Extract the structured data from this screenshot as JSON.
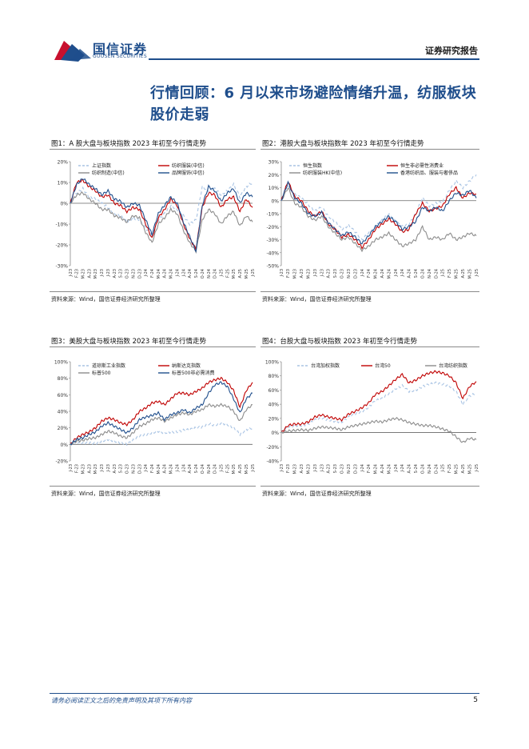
{
  "header": {
    "brand_cn": "国信证券",
    "brand_en": "GUOSEN SECURITIES",
    "report_type": "证券研究报告"
  },
  "title": "行情回顾：6 月以来市场避险情绪升温，纺服板块股价走弱",
  "footer": {
    "disclaimer": "请务必阅读正文之后的免责声明及其项下所有内容",
    "page": "5"
  },
  "colors": {
    "brand_blue": "#1f4e8c",
    "red": "#c00000",
    "gray": "#8c8c8c",
    "light_blue": "#a9c4e4",
    "dark_blue": "#1f4e8c"
  },
  "chart_data": [
    {
      "type": "line",
      "title": "图1：A 股大盘与板块指数 2023 年初至今行情走势",
      "source": "资料来源：Wind，国信证券经济研究所整理",
      "yticks": [
        "20%",
        "10%",
        "0%",
        "-10%",
        "-20%",
        "-30%"
      ],
      "ylim": [
        -30,
        20
      ],
      "xticks": [
        "J-23",
        "F-23",
        "M-23",
        "A-23",
        "M-23",
        "J-23",
        "J-23",
        "A-23",
        "S-23",
        "O-23",
        "N-23",
        "D-23",
        "J-24",
        "F-24",
        "M-24",
        "A-24",
        "M-24",
        "J-24",
        "J-24",
        "A-24",
        "S-24",
        "O-24",
        "N-24",
        "D-24",
        "J-25",
        "F-25",
        "M-25",
        "A-25",
        "M-25",
        "J-25"
      ],
      "series": [
        {
          "name": "上证指数",
          "color": "#a9c4e4",
          "dash": "4,3",
          "values": [
            0,
            5,
            7,
            3,
            2,
            0,
            -2,
            -5,
            -6,
            -9,
            -7,
            -8,
            -12,
            -15,
            -8,
            -5,
            -1,
            -3,
            -6,
            -10,
            -8,
            8,
            6,
            7,
            4,
            6,
            9,
            3,
            8,
            10
          ]
        },
        {
          "name": "纺织服装(中信)",
          "color": "#c00000",
          "values": [
            0,
            10,
            11,
            8,
            6,
            3,
            4,
            0,
            -1,
            -4,
            -2,
            -3,
            -10,
            -17,
            -7,
            -3,
            2,
            -1,
            -10,
            -17,
            -22,
            -2,
            5,
            4,
            -2,
            2,
            3,
            -4,
            2,
            -2
          ]
        },
        {
          "name": "纺织制造(中信)",
          "color": "#8c8c8c",
          "values": [
            0,
            4,
            5,
            2,
            0,
            -3,
            -3,
            -6,
            -7,
            -9,
            -6,
            -7,
            -14,
            -19,
            -10,
            -7,
            -3,
            -5,
            -13,
            -19,
            -23,
            -8,
            -3,
            -5,
            -10,
            -6,
            -4,
            -11,
            -6,
            -9
          ]
        },
        {
          "name": "品牌服饰(中信)",
          "color": "#1f4e8c",
          "values": [
            0,
            9,
            12,
            9,
            7,
            4,
            6,
            2,
            1,
            -2,
            0,
            -1,
            -8,
            -15,
            -5,
            -1,
            3,
            0,
            -9,
            -16,
            -23,
            -1,
            8,
            6,
            1,
            5,
            7,
            0,
            5,
            3
          ]
        }
      ]
    },
    {
      "type": "line",
      "title": "图2：港股大盘与板块指数年 2023 年初至今行情走势",
      "source": "资料来源：Wind，国信证券经济研究所整理",
      "yticks": [
        "30%",
        "20%",
        "10%",
        "0%",
        "-10%",
        "-20%",
        "-30%",
        "-40%",
        "-50%"
      ],
      "ylim": [
        -50,
        30
      ],
      "xticks": [
        "J-23",
        "F-23",
        "M-23",
        "A-23",
        "M-23",
        "J-23",
        "J-23",
        "A-23",
        "S-23",
        "O-23",
        "N-23",
        "D-23",
        "J-24",
        "F-24",
        "M-24",
        "A-24",
        "M-24",
        "J-24",
        "J-24",
        "A-24",
        "S-24",
        "O-24",
        "N-24",
        "D-24",
        "J-25",
        "F-25",
        "M-25",
        "A-25",
        "M-25",
        "J-25"
      ],
      "series": [
        {
          "name": "恒生指数",
          "color": "#a9c4e4",
          "dash": "4,3",
          "values": [
            0,
            12,
            5,
            2,
            -3,
            -8,
            -5,
            -12,
            -16,
            -22,
            -19,
            -24,
            -30,
            -25,
            -20,
            -15,
            -10,
            -16,
            -20,
            -18,
            -10,
            2,
            -4,
            -2,
            -1,
            8,
            15,
            10,
            15,
            20
          ]
        },
        {
          "name": "恒生非必需性消费业",
          "color": "#c00000",
          "values": [
            0,
            15,
            3,
            0,
            -8,
            -12,
            -8,
            -18,
            -22,
            -28,
            -26,
            -30,
            -36,
            -30,
            -22,
            -18,
            -14,
            -18,
            -24,
            -22,
            -10,
            -2,
            -8,
            -6,
            -4,
            5,
            10,
            2,
            6,
            5
          ]
        },
        {
          "name": "纺织服装HK(中信)",
          "color": "#8c8c8c",
          "values": [
            0,
            10,
            -2,
            -5,
            -12,
            -15,
            -12,
            -20,
            -25,
            -30,
            -28,
            -33,
            -38,
            -35,
            -30,
            -28,
            -25,
            -30,
            -35,
            -33,
            -30,
            -20,
            -30,
            -28,
            -30,
            -25,
            -30,
            -28,
            -25,
            -27
          ]
        },
        {
          "name": "香港纺织品、服装与奢侈品",
          "color": "#1f4e8c",
          "values": [
            0,
            14,
            2,
            -2,
            -10,
            -12,
            -9,
            -17,
            -22,
            -27,
            -24,
            -28,
            -33,
            -27,
            -20,
            -16,
            -12,
            -16,
            -22,
            -20,
            -16,
            -5,
            -8,
            -5,
            -8,
            0,
            6,
            4,
            8,
            2
          ]
        }
      ]
    },
    {
      "type": "line",
      "title": "图3：美股大盘与板块指数 2023 年初至今行情走势",
      "source": "资料来源：Wind，国信证券经济研究所整理",
      "yticks": [
        "100%",
        "80%",
        "60%",
        "40%",
        "20%",
        "0%",
        "-20%"
      ],
      "ylim": [
        -20,
        100
      ],
      "xticks": [
        "J-23",
        "F-23",
        "M-23",
        "A-23",
        "M-23",
        "J-23",
        "J-23",
        "A-23",
        "S-23",
        "O-23",
        "N-23",
        "D-23",
        "J-24",
        "F-24",
        "M-24",
        "A-24",
        "M-24",
        "J-24",
        "J-24",
        "A-24",
        "S-24",
        "O-24",
        "N-24",
        "D-24",
        "J-25",
        "F-25",
        "M-25",
        "A-25",
        "M-25",
        "J-25"
      ],
      "series": [
        {
          "name": "道琼斯工业指数",
          "color": "#a9c4e4",
          "dash": "4,3",
          "values": [
            0,
            2,
            1,
            2,
            1,
            4,
            6,
            4,
            2,
            0,
            5,
            10,
            12,
            14,
            16,
            14,
            15,
            15,
            17,
            18,
            20,
            21,
            25,
            23,
            26,
            24,
            20,
            12,
            18,
            20
          ]
        },
        {
          "name": "纳斯达克指数",
          "color": "#c00000",
          "values": [
            0,
            8,
            12,
            15,
            20,
            28,
            32,
            30,
            26,
            24,
            30,
            40,
            44,
            50,
            52,
            48,
            55,
            62,
            62,
            60,
            64,
            68,
            75,
            78,
            80,
            75,
            65,
            45,
            65,
            75
          ]
        },
        {
          "name": "标普500",
          "color": "#8c8c8c",
          "values": [
            0,
            4,
            5,
            7,
            8,
            12,
            16,
            14,
            10,
            8,
            14,
            22,
            25,
            30,
            32,
            28,
            32,
            36,
            38,
            36,
            40,
            42,
            48,
            46,
            48,
            46,
            40,
            28,
            42,
            48
          ]
        },
        {
          "name": "标普500非必需消费",
          "color": "#1f4e8c",
          "values": [
            0,
            6,
            8,
            12,
            15,
            22,
            26,
            22,
            18,
            14,
            20,
            30,
            33,
            35,
            38,
            30,
            36,
            38,
            42,
            38,
            44,
            48,
            62,
            72,
            75,
            70,
            55,
            38,
            55,
            62
          ]
        }
      ]
    },
    {
      "type": "line",
      "title": "图4：台股大盘与板块指数 2023 年初至今行情走势",
      "source": "资料来源：Wind，国信证券经济研究所整理",
      "yticks": [
        "100%",
        "80%",
        "60%",
        "40%",
        "20%",
        "0%",
        "-20%",
        "-40%"
      ],
      "ylim": [
        -40,
        100
      ],
      "xticks": [
        "J-23",
        "F-23",
        "M-23",
        "A-23",
        "M-23",
        "J-23",
        "J-23",
        "A-23",
        "S-23",
        "O-23",
        "N-23",
        "D-23",
        "J-24",
        "F-24",
        "M-24",
        "A-24",
        "M-24",
        "J-24",
        "J-24",
        "A-24",
        "S-24",
        "O-24",
        "N-24",
        "D-24",
        "J-25",
        "F-25",
        "M-25",
        "A-25",
        "M-25",
        "J-25"
      ],
      "series": [
        {
          "name": "台湾加权指数",
          "color": "#a9c4e4",
          "dash": "4,3",
          "values": [
            0,
            8,
            10,
            10,
            12,
            18,
            20,
            18,
            16,
            15,
            22,
            26,
            30,
            36,
            45,
            48,
            55,
            62,
            66,
            58,
            60,
            65,
            68,
            70,
            68,
            66,
            58,
            40,
            52,
            55
          ]
        },
        {
          "name": "台湾50",
          "color": "#c00000",
          "values": [
            0,
            10,
            12,
            12,
            15,
            22,
            25,
            22,
            20,
            18,
            26,
            30,
            35,
            42,
            54,
            58,
            66,
            75,
            82,
            70,
            74,
            80,
            84,
            86,
            84,
            80,
            70,
            48,
            65,
            72
          ]
        },
        {
          "name": "台湾纺织指数",
          "color": "#8c8c8c",
          "values": [
            0,
            2,
            3,
            4,
            3,
            6,
            8,
            7,
            6,
            4,
            8,
            10,
            12,
            14,
            16,
            15,
            18,
            20,
            18,
            14,
            12,
            10,
            10,
            8,
            5,
            2,
            -6,
            -14,
            -8,
            -10
          ]
        }
      ]
    }
  ]
}
